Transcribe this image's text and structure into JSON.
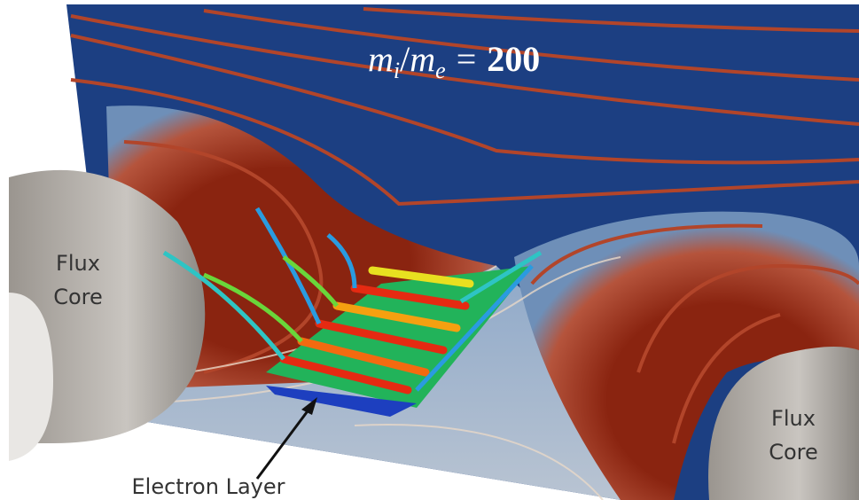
{
  "annotation": {
    "m1": "m",
    "sub1": "i",
    "slash": "/",
    "m2": "m",
    "sub2": "e",
    "equals": "=",
    "ratio": "200"
  },
  "labels": {
    "left_core": [
      "Flux",
      "Core"
    ],
    "right_core": [
      "Flux",
      "Core"
    ],
    "electron_layer": "Electron Layer"
  }
}
